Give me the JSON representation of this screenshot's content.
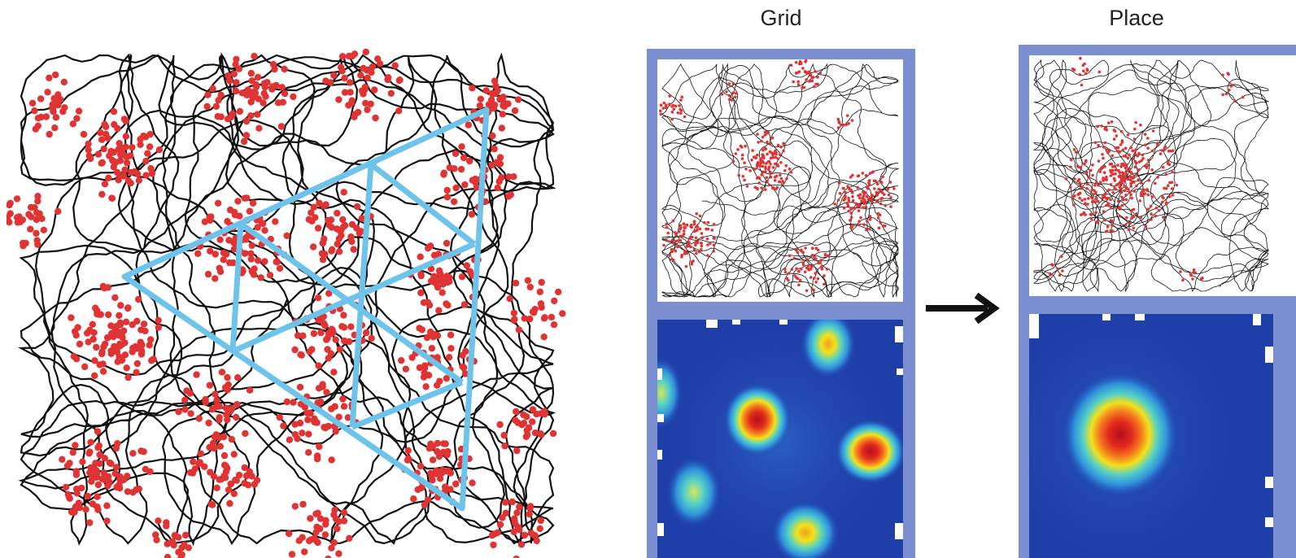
{
  "panels": {
    "grid": {
      "title": "Grid"
    },
    "place": {
      "title": "Place"
    }
  },
  "colors": {
    "trajectory": "#111111",
    "spikes": "#e03434",
    "triangle_overlay": "#6ec3ea",
    "frame": "#7b8fd0",
    "heatmap_background": "#1f3fa8",
    "arrow": "#111111"
  },
  "icons": {
    "arrow": "right-arrow-icon"
  }
}
